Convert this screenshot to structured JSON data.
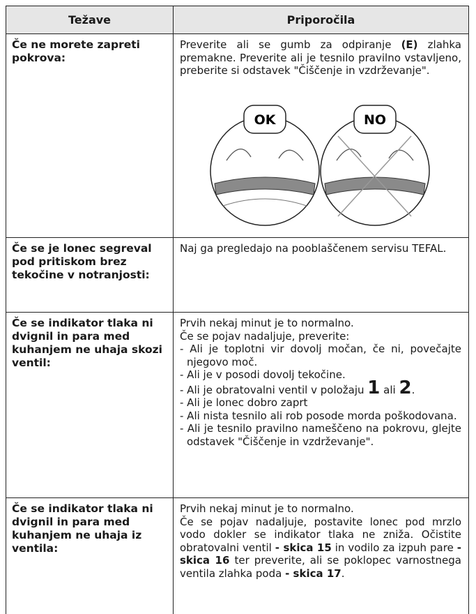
{
  "table": {
    "header": [
      "Težave",
      "Priporočila"
    ],
    "rows": [
      {
        "problem": "Če ne morete zapreti pokrova:",
        "advice": [
          [
            "Preverite ali se gumb za odpiranje ",
            {
              "text": "(E)",
              "style": "bold"
            },
            " zlahka premakne. Preverite ali je tesnilo pravilno vstavljeno, preberite si odstavek \"Čiščenje in vzdrževanje\"."
          ]
        ],
        "figure": {
          "labels": [
            "OK",
            "NO"
          ]
        }
      },
      {
        "problem": "Če se je lonec segreval pod pritiskom brez tekočine v notranjosti:",
        "advice": [
          [
            "Naj ga pregledajo na pooblaščenem servisu TEFAL."
          ]
        ]
      },
      {
        "problem": "Če se indikator tlaka ni dvignil in para med kuhanjem ne uhaja skozi ventil:",
        "advice": [
          [
            "Prvih nekaj minut je to normalno."
          ],
          [
            "Če se pojav nadaljuje, preverite:"
          ],
          [
            "- Ali je toplotni vir dovolj močan, če ni, povečajte njegovo moč."
          ],
          [
            "- Ali je v posodi dovolj tekočine."
          ],
          [
            "- Ali je obratovalni ventil v položaju ",
            {
              "text": "1",
              "style": "large"
            },
            " ali ",
            {
              "text": "2",
              "style": "large"
            },
            "."
          ],
          [
            "- Ali je lonec dobro zaprt"
          ],
          [
            "- Ali nista tesnilo ali rob posode morda poškodovana."
          ],
          [
            "- Ali je tesnilo pravilno nameščeno na pokrovu, glejte odstavek \"Čiščenje in vzdrževanje\"."
          ]
        ]
      },
      {
        "problem": "Če se indikator tlaka ni dvignil in para med kuhanjem ne uhaja iz ventila:",
        "advice": [
          [
            "Prvih nekaj minut je to normalno."
          ],
          [
            "Če se pojav nadaljuje, postavite lonec pod mrzlo vodo dokler se indikator tlaka ne zniža. Očistite obratovalni ventil ",
            {
              "text": "- skica 15",
              "style": "bold"
            },
            " in vodilo za izpuh pare ",
            {
              "text": "- skica 16",
              "style": "bold"
            },
            " ter preverite, ali se poklopec varnostnega ventila zlahka poda ",
            {
              "text": "- skica 17",
              "style": "bold"
            },
            "."
          ]
        ]
      }
    ]
  }
}
